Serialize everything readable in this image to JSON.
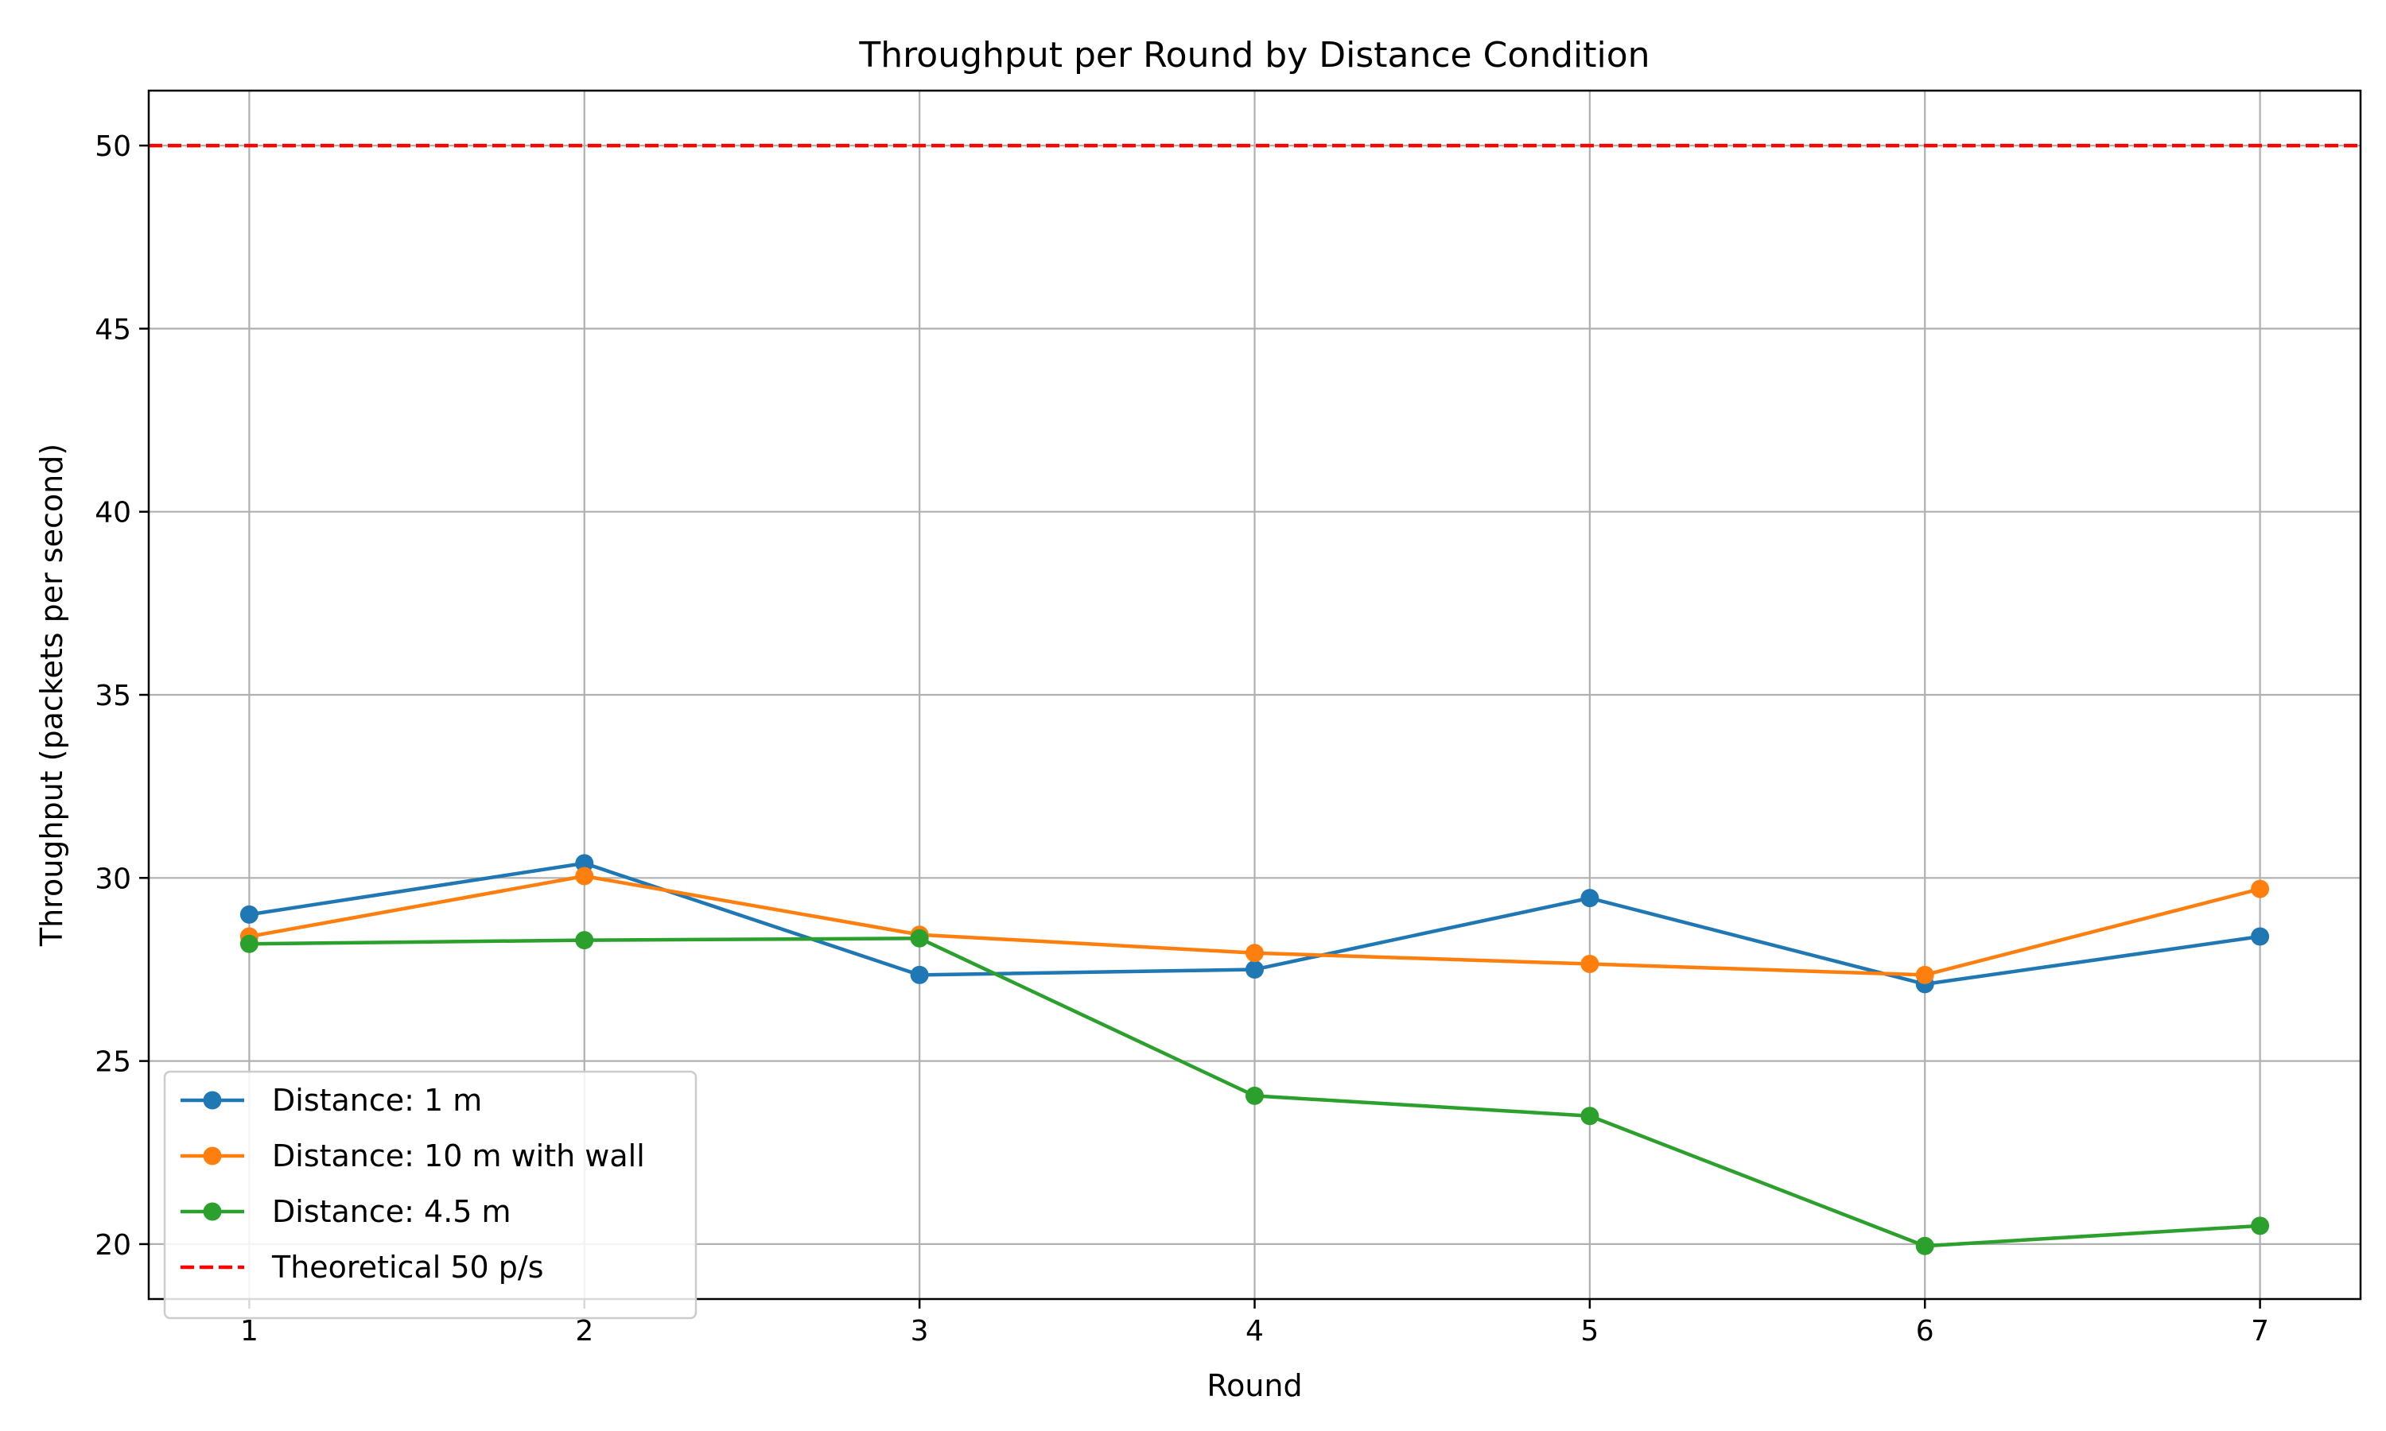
{
  "chart_data": {
    "type": "line",
    "title": "Throughput per Round by Distance Condition",
    "xlabel": "Round",
    "ylabel": "Throughput (packets per second)",
    "x": [
      1,
      2,
      3,
      4,
      5,
      6,
      7
    ],
    "xlim": [
      0.7,
      7.3
    ],
    "ylim": [
      18.5,
      51.5
    ],
    "xticks": [
      1,
      2,
      3,
      4,
      5,
      6,
      7
    ],
    "yticks": [
      20,
      25,
      30,
      35,
      40,
      45,
      50
    ],
    "grid": true,
    "legend_position": "lower-left",
    "series": [
      {
        "name": "Distance: 1 m",
        "color": "#1f77b4",
        "marker": "circle",
        "values": [
          29.0,
          30.4,
          27.35,
          27.5,
          29.45,
          27.1,
          28.4
        ]
      },
      {
        "name": "Distance: 10 m with wall",
        "color": "#ff7f0e",
        "marker": "circle",
        "values": [
          28.4,
          30.05,
          28.45,
          27.95,
          27.65,
          27.35,
          29.7
        ]
      },
      {
        "name": "Distance: 4.5 m",
        "color": "#2ca02c",
        "marker": "circle",
        "values": [
          28.2,
          28.3,
          28.35,
          24.05,
          23.5,
          19.95,
          20.5
        ]
      }
    ],
    "reference_lines": [
      {
        "name": "Theoretical 50 p/s",
        "y": 50,
        "color": "#ff0000",
        "style": "dashed"
      }
    ]
  }
}
